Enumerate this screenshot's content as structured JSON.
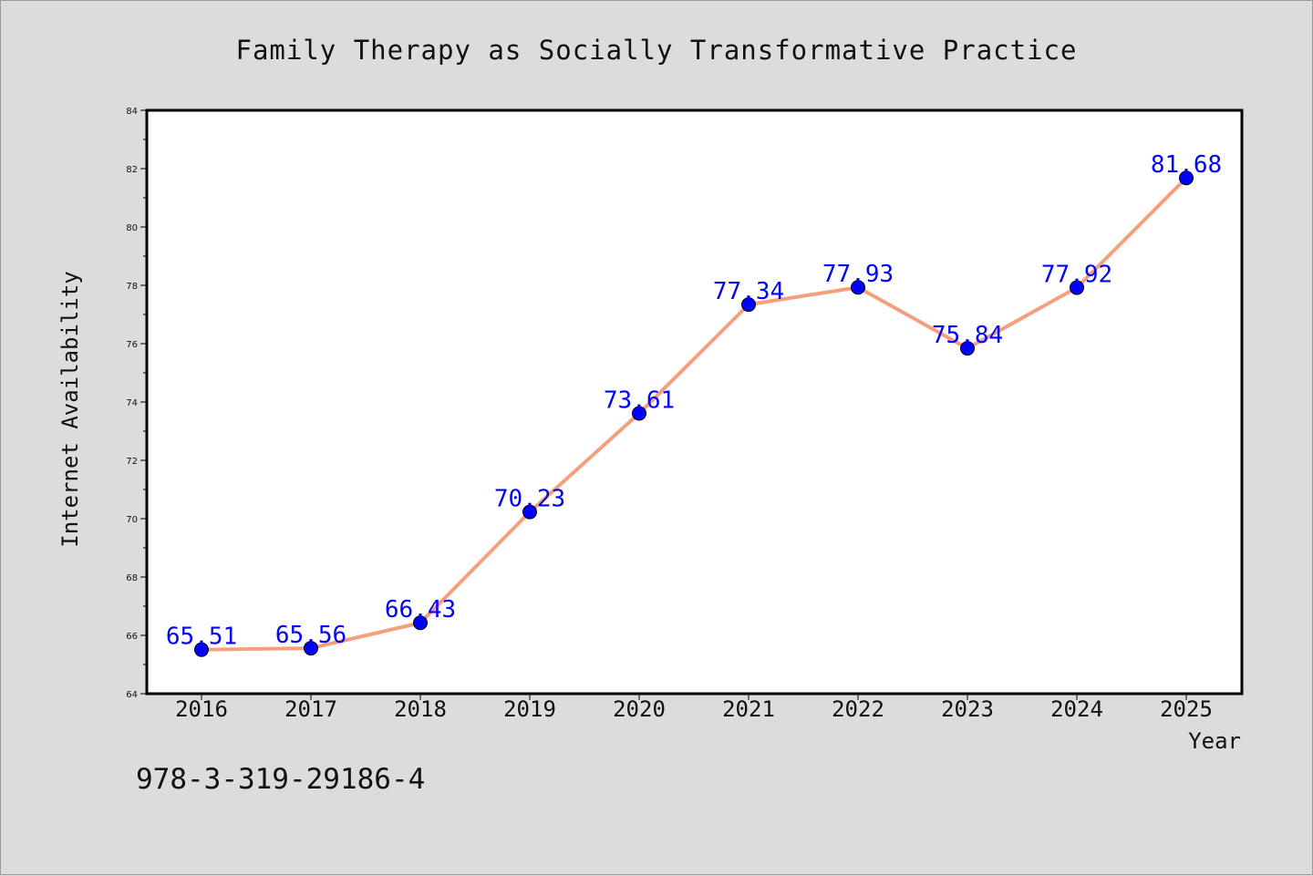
{
  "chart_data": {
    "type": "line",
    "title": "Family Therapy as Socially Transformative Practice",
    "xlabel": "Year",
    "ylabel": "Internet Availability",
    "categories": [
      "2016",
      "2017",
      "2018",
      "2019",
      "2020",
      "2021",
      "2022",
      "2023",
      "2024",
      "2025"
    ],
    "values": [
      65.51,
      65.56,
      66.43,
      70.23,
      73.61,
      77.34,
      77.93,
      75.84,
      77.92,
      81.68
    ],
    "data_labels": [
      "65.51",
      "65.56",
      "66.43",
      "70.23",
      "73.61",
      "77.34",
      "77.93",
      "75.84",
      "77.92",
      "81.68"
    ],
    "ylim": [
      64,
      84
    ],
    "yticks": [
      64,
      66,
      68,
      70,
      72,
      74,
      76,
      78,
      80,
      82,
      84
    ],
    "grid": false,
    "legend": "none",
    "colors": {
      "line": "#f4a07f",
      "marker": "#0000ff",
      "marker_edge": "#000000",
      "data_label": "#0000ff",
      "background": "#dcdcdc",
      "plot_background": "#ffffff"
    }
  },
  "footer": {
    "isbn": "978-3-319-29186-4"
  }
}
